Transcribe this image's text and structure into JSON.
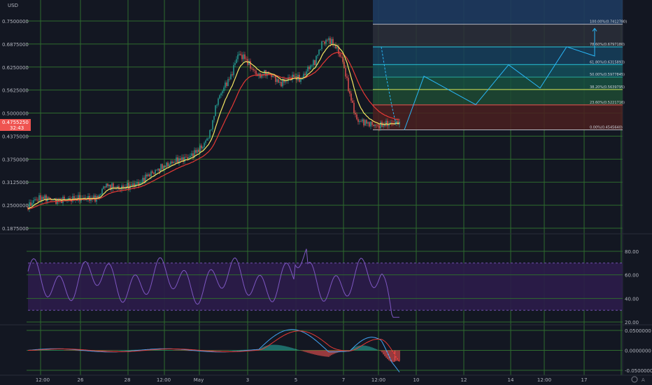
{
  "currency": "USD",
  "current_price": "0.4755250",
  "current_countdown": "32:43",
  "colors": {
    "background": "#131722",
    "grid": "#3f8f3f",
    "price_badge": "#ef5350",
    "rsi_line": "#7e57c2",
    "rsi_band": "#2c1c4a",
    "ema_fast": "#f5e663",
    "ema_slow": "#e53935",
    "macd_line": "#42a5f5",
    "signal_line": "#e53935",
    "bull": "#26a69a",
    "bear": "#ef5350"
  },
  "price_axis": {
    "ticks": [
      "0.7500000",
      "0.6875000",
      "0.6250000",
      "0.5625000",
      "0.5000000",
      "0.4375000",
      "0.3750000",
      "0.3125000",
      "0.2500000",
      "0.1875000"
    ]
  },
  "rsi_axis": {
    "ticks": [
      "80.00",
      "60.00",
      "40.00",
      "20.00"
    ]
  },
  "macd_axis": {
    "ticks": [
      "0.0500000",
      "0.0000000",
      "-0.0500000"
    ]
  },
  "time_axis": {
    "labels": [
      "12:00",
      "26",
      "28",
      "12:00",
      "May",
      "3",
      "5",
      "7",
      "12:00",
      "10",
      "12",
      "14",
      "12:00",
      "17"
    ]
  },
  "fibonacci": {
    "levels": [
      {
        "ratio": 1.0,
        "label": "100.00%(0.7412780)",
        "price": 0.741278
      },
      {
        "ratio": 0.786,
        "label": "78.60%(0.6797180)",
        "price": 0.679718
      },
      {
        "ratio": 0.618,
        "label": "61.80%(0.6315893)",
        "price": 0.6315893
      },
      {
        "ratio": 0.5,
        "label": "50.00%(0.5977845)",
        "price": 0.5977845
      },
      {
        "ratio": 0.382,
        "label": "38.20%(0.5639795)",
        "price": 0.5639795
      },
      {
        "ratio": 0.236,
        "label": "23.60%(0.5221716)",
        "price": 0.5221716
      },
      {
        "ratio": 0.0,
        "label": "0.00%(0.4545640)",
        "price": 0.454564
      }
    ]
  },
  "chart_data": {
    "type": "candlestick",
    "series": [
      {
        "name": "price",
        "x": [
          0,
          10,
          20,
          30,
          40,
          50,
          60,
          70,
          80,
          90,
          100,
          110,
          120,
          130,
          140,
          150,
          160,
          170,
          180,
          190,
          200,
          210,
          220,
          230,
          240,
          250,
          260,
          270,
          280,
          290,
          300,
          310,
          320,
          330,
          340,
          350,
          360,
          370,
          380,
          390,
          400,
          410,
          420,
          430,
          440,
          450,
          460,
          470,
          480,
          490,
          500,
          510,
          520,
          530,
          540,
          550,
          560,
          570
        ],
        "values": [
          0.245,
          0.265,
          0.27,
          0.268,
          0.262,
          0.265,
          0.266,
          0.268,
          0.268,
          0.268,
          0.27,
          0.305,
          0.3,
          0.295,
          0.3,
          0.305,
          0.31,
          0.33,
          0.34,
          0.352,
          0.36,
          0.37,
          0.375,
          0.38,
          0.395,
          0.41,
          0.445,
          0.53,
          0.57,
          0.6,
          0.66,
          0.65,
          0.62,
          0.6,
          0.61,
          0.6,
          0.58,
          0.59,
          0.6,
          0.59,
          0.62,
          0.64,
          0.69,
          0.7,
          0.68,
          0.64,
          0.55,
          0.48,
          0.476,
          0.47,
          0.465,
          0.47,
          0.472,
          0.473,
          0.474,
          0.475,
          0.4755,
          0.47555
        ]
      }
    ],
    "rsi": {
      "ylim": [
        20,
        90
      ],
      "band": [
        30,
        70
      ]
    },
    "projection_path": [
      {
        "x": 578,
        "y": 0.4545
      },
      {
        "x": 606,
        "y": 0.6
      },
      {
        "x": 680,
        "y": 0.523
      },
      {
        "x": 727,
        "y": 0.631
      },
      {
        "x": 772,
        "y": 0.568
      },
      {
        "x": 810,
        "y": 0.68
      },
      {
        "x": 850,
        "y": 0.655
      },
      {
        "x": 850,
        "y": 0.73
      }
    ]
  }
}
